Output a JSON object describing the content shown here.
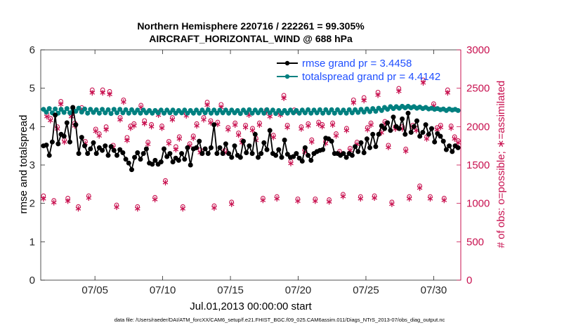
{
  "chart_data": {
    "type": "line",
    "title": "Northern Hemisphere 220716 / 222261 = 99.305%",
    "subtitle": "AIRCRAFT_HORIZONTAL_WIND @ 688 hPa",
    "xlabel": "Jul.01,2013 00:00:00 start",
    "ylabel": "rmse and totalspread",
    "ylabel_right": "# of obs: o=possible; ∗=assimilated",
    "xlim": [
      1,
      32
    ],
    "ylim": [
      0,
      6
    ],
    "ylim_right": [
      0,
      3000
    ],
    "xticks": [
      5,
      10,
      15,
      20,
      25,
      30
    ],
    "xtick_labels": [
      "07/05",
      "07/10",
      "07/15",
      "07/20",
      "07/25",
      "07/30"
    ],
    "yticks": [
      0,
      1,
      2,
      3,
      4,
      5,
      6
    ],
    "yticks_right": [
      0,
      500,
      1000,
      1500,
      2000,
      2500,
      3000
    ],
    "footnote": "data file: /Users/raeder/DAI/ATM_forcXX/CAM6_setup/f.e21.FHIST_BGC.f09_025.CAM6assim.011/Diags_NTrS_2013-07/obs_diag_output.nc",
    "colors": {
      "rmse": "#000000",
      "spread": "#008080",
      "obs": "#c8104f",
      "legend_text": "#1f4fff"
    },
    "series": [
      {
        "name": "rmse grand pr = 3.4458",
        "axis": "left",
        "marker": "filled-circle",
        "values": [
          3.5,
          3.52,
          3.25,
          3.6,
          4.3,
          3.55,
          3.8,
          3.75,
          4.1,
          3.6,
          4.5,
          4.05,
          3.3,
          3.72,
          3.5,
          3.3,
          3.42,
          3.58,
          3.3,
          3.45,
          3.38,
          3.5,
          3.25,
          3.48,
          3.38,
          3.25,
          3.4,
          3.32,
          3.15,
          3.05,
          2.88,
          3.2,
          3.32,
          3.15,
          3.3,
          3.42,
          3.05,
          3.02,
          3.12,
          3.02,
          3.08,
          3.42,
          3.22,
          3.3,
          3.08,
          3.18,
          3.12,
          3.3,
          3.15,
          3.45,
          3.0,
          3.42,
          3.45,
          3.62,
          3.3,
          3.42,
          3.3,
          3.45,
          4.05,
          3.3,
          3.45,
          3.3,
          3.55,
          3.3,
          3.2,
          3.5,
          3.25,
          3.2,
          3.62,
          3.32,
          3.5,
          3.3,
          3.8,
          3.2,
          3.3,
          3.58,
          3.4,
          3.9,
          3.3,
          3.25,
          3.4,
          3.2,
          3.65,
          3.28,
          3.2,
          3.22,
          3.3,
          3.18,
          3.1,
          3.45,
          3.25,
          3.12,
          3.3,
          3.35,
          3.38,
          3.4,
          3.7,
          3.68,
          3.62,
          3.3,
          3.3,
          3.25,
          3.3,
          3.2,
          3.3,
          3.25,
          3.48,
          3.35,
          3.58,
          3.32,
          3.68,
          3.45,
          3.8,
          3.48,
          3.8,
          4.02,
          3.95,
          4.1,
          3.9,
          4.25,
          4.0,
          3.95,
          4.2,
          3.8,
          4.35,
          3.85,
          4.0,
          4.15,
          3.75,
          3.85,
          4.05,
          3.8,
          3.95,
          3.6,
          3.82,
          3.75,
          3.62,
          3.4,
          3.5,
          3.35,
          3.5,
          3.45
        ]
      },
      {
        "name": "totalspread grand pr = 4.4142",
        "axis": "left",
        "marker": "filled-circle",
        "values": [
          4.45,
          4.38,
          4.47,
          4.36,
          4.46,
          4.35,
          4.45,
          4.37,
          4.47,
          4.36,
          4.48,
          4.4,
          4.48,
          4.38,
          4.46,
          4.35,
          4.45,
          4.37,
          4.44,
          4.35,
          4.45,
          4.36,
          4.44,
          4.34,
          4.45,
          4.36,
          4.45,
          4.36,
          4.44,
          4.35,
          4.44,
          4.36,
          4.43,
          4.35,
          4.43,
          4.36,
          4.42,
          4.35,
          4.42,
          4.36,
          4.43,
          4.35,
          4.43,
          4.36,
          4.43,
          4.35,
          4.42,
          4.36,
          4.43,
          4.35,
          4.42,
          4.35,
          4.43,
          4.35,
          4.43,
          4.36,
          4.44,
          4.35,
          4.43,
          4.35,
          4.43,
          4.36,
          4.43,
          4.35,
          4.43,
          4.36,
          4.42,
          4.34,
          4.43,
          4.36,
          4.44,
          4.35,
          4.43,
          4.36,
          4.43,
          4.35,
          4.44,
          4.36,
          4.43,
          4.34,
          4.42,
          4.35,
          4.42,
          4.35,
          4.43,
          4.36,
          4.42,
          4.35,
          4.43,
          4.36,
          4.44,
          4.35,
          4.43,
          4.36,
          4.44,
          4.35,
          4.44,
          4.36,
          4.44,
          4.35,
          4.44,
          4.36,
          4.43,
          4.35,
          4.44,
          4.36,
          4.44,
          4.37,
          4.45,
          4.38,
          4.46,
          4.39,
          4.47,
          4.4,
          4.48,
          4.42,
          4.5,
          4.45,
          4.52,
          4.47,
          4.52,
          4.48,
          4.53,
          4.49,
          4.53,
          4.49,
          4.52,
          4.48,
          4.51,
          4.47,
          4.5,
          4.46,
          4.48,
          4.45,
          4.47,
          4.44,
          4.46,
          4.42,
          4.46,
          4.43,
          4.45,
          4.42
        ]
      },
      {
        "name": "# of obs possible",
        "axis": "right",
        "marker": "circle",
        "values": [
          1080,
          2140,
          2090,
          1020,
          1980,
          2310,
          1810,
          1050,
          2140,
          2030,
          940,
          2230,
          1790,
          1080,
          2460,
          1950,
          1890,
          2460,
          1980,
          2440,
          1740,
          960,
          2100,
          2330,
          1840,
          1990,
          2020,
          940,
          2260,
          2060,
          1780,
          2010,
          1060,
          2170,
          1990,
          1280,
          1790,
          2100,
          1720,
          1850,
          940,
          2150,
          1760,
          1860,
          2020,
          1680,
          2100,
          2300,
          2060,
          950,
          2040,
          2270,
          1670,
          1970,
          1000,
          2030,
          1900,
          1800,
          2000,
          2160,
          1960,
          1830,
          2030,
          1050,
          2200,
          2140,
          1870,
          1070,
          2160,
          2390,
          2000,
          1530,
          2200,
          1040,
          1980,
          1680,
          2020,
          1810,
          1040,
          2040,
          2010,
          1790,
          1030,
          2030,
          1890,
          1660,
          1100,
          1960,
          1700,
          2330,
          1780,
          1070,
          2360,
          1970,
          2030,
          1080,
          2430,
          1930,
          2050,
          1740,
          1000,
          1980,
          2480,
          1980,
          1690,
          1070,
          2000,
          1960,
          1210,
          2590,
          1850,
          1070,
          2280,
          1970,
          2000,
          1050,
          2460,
          1990,
          1850,
          1800
        ]
      },
      {
        "name": "# of obs assimilated",
        "axis": "right",
        "marker": "star",
        "values": [
          1060,
          2130,
          2080,
          1010,
          1970,
          2290,
          1800,
          1030,
          2130,
          2010,
          930,
          2210,
          1780,
          1070,
          2440,
          1940,
          1880,
          2440,
          1960,
          2420,
          1730,
          950,
          2090,
          2320,
          1820,
          1980,
          2010,
          930,
          2250,
          2040,
          1770,
          2000,
          1050,
          2150,
          1980,
          1270,
          1780,
          2090,
          1700,
          1840,
          930,
          2140,
          1750,
          1850,
          2010,
          1660,
          2090,
          2280,
          2050,
          940,
          2030,
          2250,
          1660,
          1960,
          990,
          2020,
          1890,
          1790,
          1990,
          2150,
          1950,
          1820,
          2020,
          1040,
          2190,
          2130,
          1860,
          1060,
          2150,
          2370,
          1990,
          1520,
          2190,
          1030,
          1970,
          1670,
          2010,
          1800,
          1030,
          2030,
          2000,
          1780,
          1020,
          2020,
          1880,
          1650,
          1090,
          1950,
          1690,
          2310,
          1770,
          1060,
          2340,
          1960,
          2020,
          1070,
          2410,
          1920,
          2040,
          1730,
          990,
          1970,
          2460,
          1970,
          1680,
          1060,
          1990,
          1950,
          1200,
          2570,
          1840,
          1060,
          2270,
          1960,
          1990,
          1040,
          2440,
          1980,
          1840,
          1790
        ]
      }
    ],
    "legend": {
      "position": "top-right",
      "entries": [
        "rmse grand pr = 3.4458",
        "totalspread grand pr = 4.4142"
      ]
    }
  }
}
